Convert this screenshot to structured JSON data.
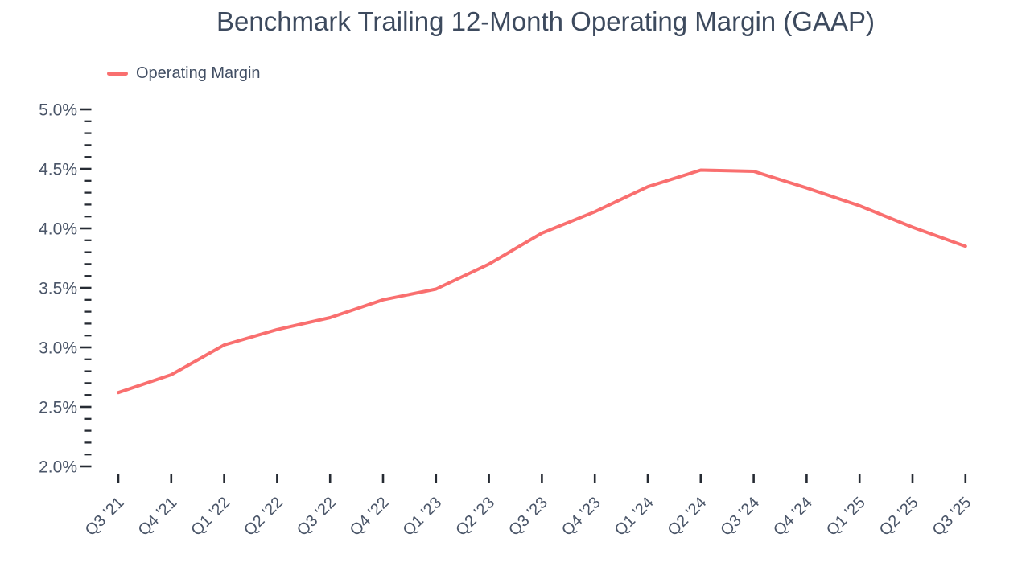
{
  "title": "Benchmark Trailing 12-Month Operating Margin (GAAP)",
  "legend": {
    "label": "Operating Margin",
    "swatch_color": "#f96f6f"
  },
  "colors": {
    "line": "#f96f6f",
    "tick": "#262b33",
    "axis_label": "#4a5568",
    "title_text": "#3d4a5e",
    "background": "#ffffff"
  },
  "chart_data": {
    "type": "line",
    "title": "Benchmark Trailing 12-Month Operating Margin (GAAP)",
    "xlabel": "",
    "ylabel": "",
    "grid": false,
    "legend_position": "top-left",
    "ylim": [
      2.0,
      5.0
    ],
    "y_major_step": 0.5,
    "y_minor_step": 0.1,
    "y_tick_labels": [
      "5.0%",
      "4.5%",
      "4.0%",
      "3.5%",
      "3.0%",
      "2.5%",
      "2.0%"
    ],
    "categories": [
      "Q3 '21",
      "Q4 '21",
      "Q1 '22",
      "Q2 '22",
      "Q3 '22",
      "Q4 '22",
      "Q1 '23",
      "Q2 '23",
      "Q3 '23",
      "Q4 '23",
      "Q1 '24",
      "Q2 '24",
      "Q3 '24",
      "Q4 '24",
      "Q1 '25",
      "Q2 '25",
      "Q3 '25"
    ],
    "series": [
      {
        "name": "Operating Margin",
        "color": "#f96f6f",
        "unit": "%",
        "values": [
          2.62,
          2.77,
          3.02,
          3.15,
          3.25,
          3.4,
          3.49,
          3.7,
          3.96,
          4.14,
          4.35,
          4.49,
          4.48,
          4.34,
          4.19,
          4.01,
          3.85
        ]
      }
    ]
  }
}
